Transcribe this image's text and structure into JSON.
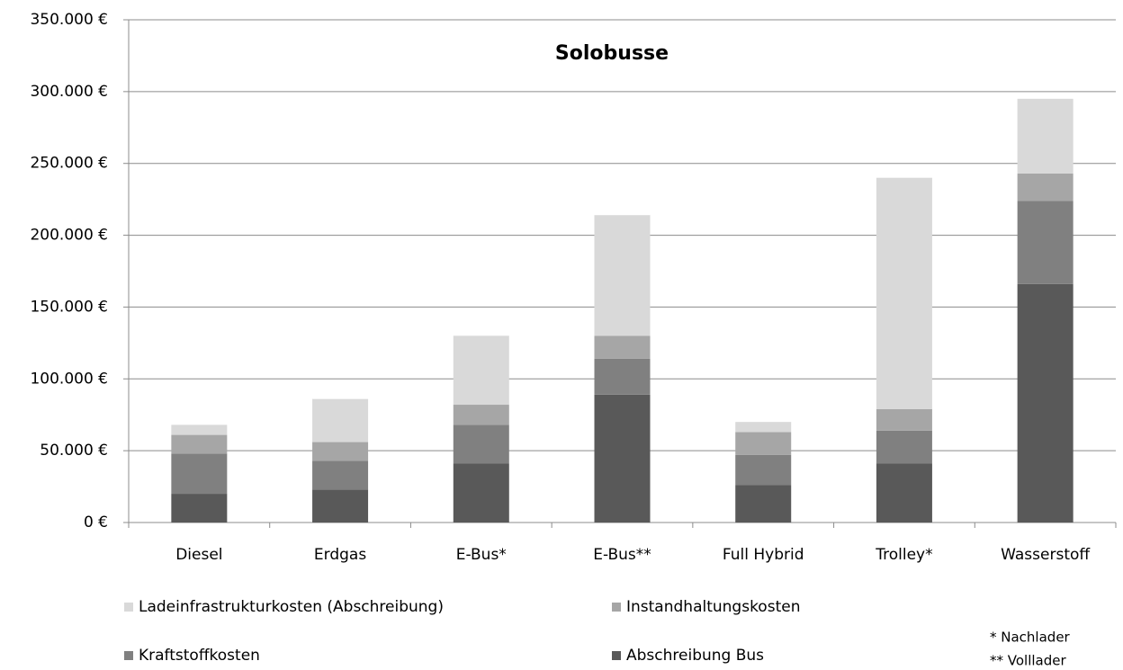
{
  "chart_data": {
    "type": "stacked_bar",
    "title": "Solobusse",
    "categories": [
      "Diesel",
      "Erdgas",
      "E-Bus*",
      "E-Bus**",
      "Full Hybrid",
      "Trolley*",
      "Wasserstoff"
    ],
    "series": [
      {
        "name": "Abschreibung Bus",
        "color": "#595959",
        "values": [
          20000,
          23000,
          41000,
          89000,
          26000,
          41000,
          166000
        ]
      },
      {
        "name": "Kraftstoffkosten",
        "color": "#808080",
        "values": [
          28000,
          20000,
          27000,
          25000,
          21000,
          23000,
          58000
        ]
      },
      {
        "name": "Instandhaltungskosten",
        "color": "#a6a6a6",
        "values": [
          13000,
          13000,
          14000,
          16000,
          16000,
          15000,
          19000
        ]
      },
      {
        "name": "Ladeinfrastrukturkosten (Abschreibung)",
        "color": "#d9d9d9",
        "values": [
          7000,
          30000,
          48000,
          84000,
          7000,
          161000,
          52000
        ]
      }
    ],
    "ylim": [
      0,
      350000
    ],
    "yticks": [
      {
        "value": 0,
        "label": "0 €"
      },
      {
        "value": 50000,
        "label": "50.000 €"
      },
      {
        "value": 100000,
        "label": "100.000 €"
      },
      {
        "value": 150000,
        "label": "150.000 €"
      },
      {
        "value": 200000,
        "label": "200.000 €"
      },
      {
        "value": 250000,
        "label": "250.000 €"
      },
      {
        "value": 300000,
        "label": "300.000 €"
      },
      {
        "value": 350000,
        "label": "350.000 €"
      }
    ],
    "grid": true,
    "annotations": [
      "* Nachlader",
      "** Volllader"
    ]
  }
}
